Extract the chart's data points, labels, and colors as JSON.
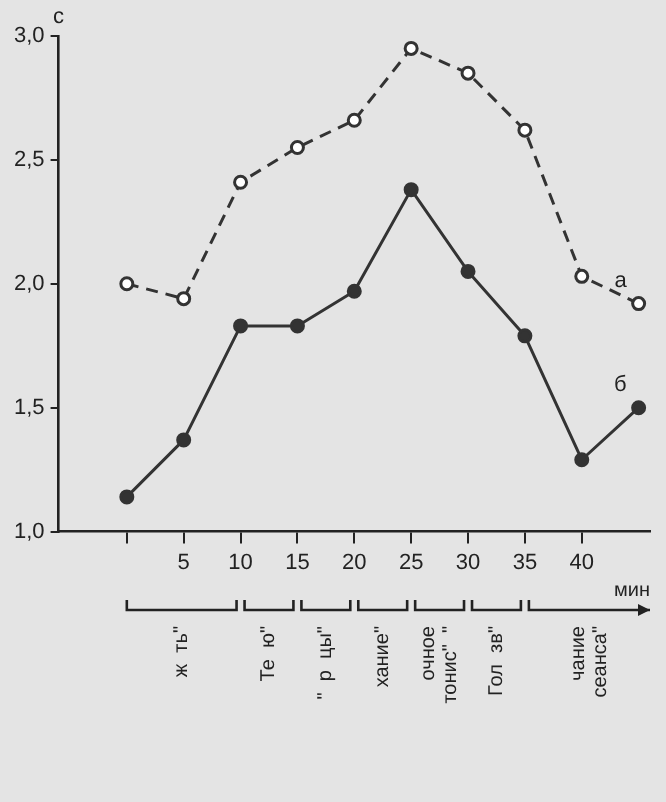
{
  "chart_data": {
    "type": "line",
    "ylabel": "с",
    "xlabel": "мин",
    "x": [
      0,
      5,
      10,
      15,
      20,
      25,
      30,
      35,
      40,
      45
    ],
    "series": [
      {
        "name": "а",
        "color": "#333333",
        "line_style": "dashed",
        "values": [
          2.0,
          1.94,
          2.41,
          2.55,
          2.66,
          2.95,
          2.85,
          2.62,
          2.03,
          1.92
        ]
      },
      {
        "name": "б",
        "color": "#333333",
        "line_style": "solid",
        "values": [
          1.14,
          1.37,
          1.83,
          1.83,
          1.97,
          2.38,
          2.05,
          1.79,
          1.29,
          1.5
        ]
      }
    ],
    "xlim": [
      -6,
      46
    ],
    "xticks": [
      {
        "value": 0,
        "label": null
      },
      5,
      10,
      15,
      20,
      25,
      30,
      35,
      40
    ],
    "ylim": [
      1.0,
      3.0
    ],
    "yticks": [
      {
        "value": 1.0,
        "label": "1,0"
      },
      {
        "value": 1.5,
        "label": "1,5"
      },
      {
        "value": 2.0,
        "label": "2,0"
      },
      {
        "value": 2.5,
        "label": "2,5"
      },
      {
        "value": 3.0,
        "label": "3,0"
      }
    ],
    "annotations": [
      "ж  ть\"",
      "Те  ю\"",
      "\"  р  цы\"",
      "хание\"",
      "очное тонис\"  \"",
      "Гол  зв\"",
      "чание сеанса\""
    ],
    "grid": false,
    "legend": false,
    "marker": "circle"
  }
}
